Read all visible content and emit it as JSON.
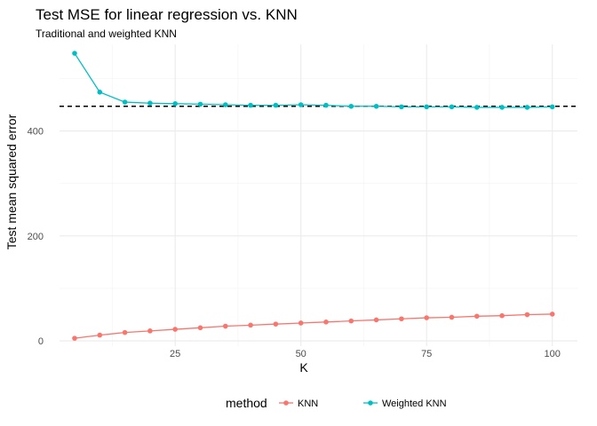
{
  "chart_data": {
    "type": "line",
    "title": "Test MSE for linear regression vs. KNN",
    "subtitle": "Traditional and weighted KNN",
    "xlabel": "K",
    "ylabel": "Test mean squared error",
    "xlim": [
      2,
      105
    ],
    "ylim": [
      -10,
      565
    ],
    "x_ticks": [
      25,
      50,
      75,
      100
    ],
    "y_ticks": [
      0,
      200,
      400
    ],
    "grid": true,
    "legend_title": "method",
    "legend_position": "bottom",
    "reference_line": {
      "y": 447,
      "style": "dashed",
      "color": "#000000"
    },
    "x": [
      5,
      10,
      15,
      20,
      25,
      30,
      35,
      40,
      45,
      50,
      55,
      60,
      65,
      70,
      75,
      80,
      85,
      90,
      95,
      100
    ],
    "series": [
      {
        "name": "KNN",
        "color": "#F8766D",
        "values": [
          5,
          11,
          16,
          19,
          22,
          25,
          28,
          30,
          32,
          34,
          36,
          38,
          40,
          42,
          44,
          45,
          47,
          48,
          50,
          51
        ]
      },
      {
        "name": "Weighted KNN",
        "color": "#00BFC4",
        "values": [
          548,
          474,
          455,
          453,
          452,
          451,
          450,
          449,
          449,
          450,
          449,
          447,
          447,
          446,
          446,
          446,
          445,
          445,
          445,
          446
        ]
      }
    ]
  }
}
